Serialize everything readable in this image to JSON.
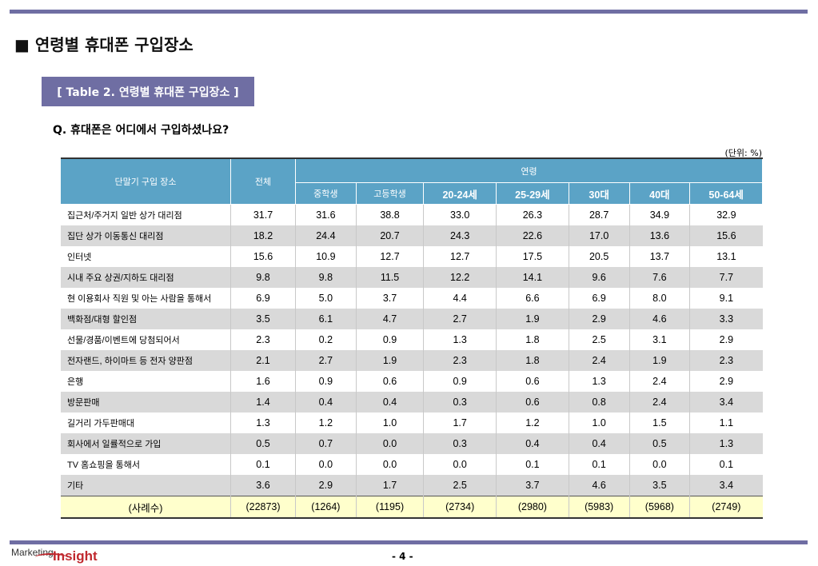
{
  "title": "■ 연령별 휴대폰 구입장소",
  "table_tag": "[ Table 2. 연령별 휴대폰 구입장소 ]",
  "question": "Q. 휴대폰은 어디에서 구입하셨나요?",
  "unit": "(단위: %)",
  "header": {
    "place": "단말기 구입 장소",
    "total": "전체",
    "age_group": "연령",
    "ages": [
      "중학생",
      "고등학생",
      "20-24세",
      "25-29세",
      "30대",
      "40대",
      "50-64세"
    ]
  },
  "rows": [
    {
      "label": "집근처/주거지 일반 상가 대리점",
      "values": [
        "31.7",
        "31.6",
        "38.8",
        "33.0",
        "26.3",
        "28.7",
        "34.9",
        "32.9"
      ]
    },
    {
      "label": "집단 상가 이동통신 대리점",
      "values": [
        "18.2",
        "24.4",
        "20.7",
        "24.3",
        "22.6",
        "17.0",
        "13.6",
        "15.6"
      ]
    },
    {
      "label": "인터넷",
      "values": [
        "15.6",
        "10.9",
        "12.7",
        "12.7",
        "17.5",
        "20.5",
        "13.7",
        "13.1"
      ]
    },
    {
      "label": "시내 주요 상권/지하도 대리점",
      "values": [
        "9.8",
        "9.8",
        "11.5",
        "12.2",
        "14.1",
        "9.6",
        "7.6",
        "7.7"
      ]
    },
    {
      "label": "현 이용회사 직원 및 아는 사람을 통해서",
      "values": [
        "6.9",
        "5.0",
        "3.7",
        "4.4",
        "6.6",
        "6.9",
        "8.0",
        "9.1"
      ]
    },
    {
      "label": "백화점/대형 할인점",
      "values": [
        "3.5",
        "6.1",
        "4.7",
        "2.7",
        "1.9",
        "2.9",
        "4.6",
        "3.3"
      ]
    },
    {
      "label": "선물/경품/이벤트에 당첨되어서",
      "values": [
        "2.3",
        "0.2",
        "0.9",
        "1.3",
        "1.8",
        "2.5",
        "3.1",
        "2.9"
      ]
    },
    {
      "label": "전자랜드, 하이마트 등 전자 양판점",
      "values": [
        "2.1",
        "2.7",
        "1.9",
        "2.3",
        "1.8",
        "2.4",
        "1.9",
        "2.3"
      ]
    },
    {
      "label": "은행",
      "values": [
        "1.6",
        "0.9",
        "0.6",
        "0.9",
        "0.6",
        "1.3",
        "2.4",
        "2.9"
      ]
    },
    {
      "label": "방문판매",
      "values": [
        "1.4",
        "0.4",
        "0.4",
        "0.3",
        "0.6",
        "0.8",
        "2.4",
        "3.4"
      ]
    },
    {
      "label": "길거리 가두판매대",
      "values": [
        "1.3",
        "1.2",
        "1.0",
        "1.7",
        "1.2",
        "1.0",
        "1.5",
        "1.1"
      ]
    },
    {
      "label": "회사에서 일률적으로 가입",
      "values": [
        "0.5",
        "0.7",
        "0.0",
        "0.3",
        "0.4",
        "0.4",
        "0.5",
        "1.3"
      ]
    },
    {
      "label": "TV 홈쇼핑을 통해서",
      "values": [
        "0.1",
        "0.0",
        "0.0",
        "0.0",
        "0.1",
        "0.1",
        "0.0",
        "0.1"
      ]
    },
    {
      "label": "기타",
      "values": [
        "3.6",
        "2.9",
        "1.7",
        "2.5",
        "3.7",
        "4.6",
        "3.5",
        "3.4"
      ]
    }
  ],
  "total_row": {
    "label": "(사례수)",
    "values": [
      "(22873)",
      "(1264)",
      "(1195)",
      "(2734)",
      "(2980)",
      "(5983)",
      "(5968)",
      "(2749)"
    ]
  },
  "footer": {
    "logo_prefix": "Marketing",
    "logo_main": "Insight",
    "page": "- 4 -"
  },
  "colors": {
    "accent": "#6f6ea3",
    "header": "#5ba3c6",
    "total_row": "#ffffcc",
    "stripe": "#d9d9d9"
  }
}
